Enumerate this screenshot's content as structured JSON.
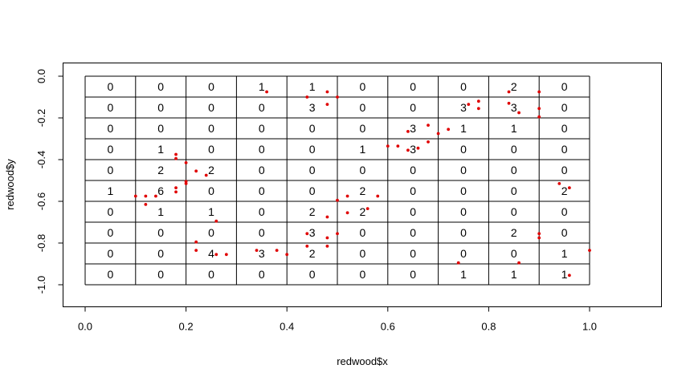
{
  "chart_data": {
    "type": "scatter",
    "xlabel": "redwood$x",
    "ylabel": "redwood$y",
    "xlim": [
      -0.05,
      1.14
    ],
    "ylim": [
      -1.1,
      0.05
    ],
    "x_ticks": [
      0.0,
      0.2,
      0.4,
      0.6,
      0.8,
      1.0
    ],
    "x_tick_labels": [
      "0.0",
      "0.2",
      "0.4",
      "0.6",
      "0.8",
      "1.0"
    ],
    "y_ticks": [
      0.0,
      -0.2,
      -0.4,
      -0.6,
      -0.8,
      -1.0
    ],
    "y_tick_labels": [
      "0.0",
      "-0.2",
      "-0.4",
      "-0.6",
      "-0.8",
      "-1.0"
    ],
    "point_color": "#e00000",
    "grid": {
      "x_breaks": [
        0.0,
        0.1,
        0.2,
        0.3,
        0.4,
        0.5,
        0.6,
        0.7,
        0.8,
        0.9,
        1.0
      ],
      "y_breaks": [
        0.0,
        -0.1,
        -0.2,
        -0.3,
        -0.4,
        -0.5,
        -0.6,
        -0.7,
        -0.8,
        -0.9,
        -1.0
      ],
      "counts": [
        [
          "0",
          "0",
          "0",
          "1",
          "1",
          "0",
          "0",
          "0",
          "2",
          "0"
        ],
        [
          "0",
          "0",
          "0",
          "0",
          "3",
          "0",
          "0",
          "3",
          "3",
          "0"
        ],
        [
          "0",
          "0",
          "0",
          "0",
          "0",
          "0",
          "3",
          "1",
          "1",
          "0"
        ],
        [
          "0",
          "1",
          "0",
          "0",
          "0",
          "1",
          "3",
          "0",
          "0",
          "0"
        ],
        [
          "0",
          "2",
          "2",
          "0",
          "0",
          "0",
          "0",
          "0",
          "0",
          "0"
        ],
        [
          "1",
          "6",
          "0",
          "0",
          "0",
          "2",
          "0",
          "0",
          "0",
          "2"
        ],
        [
          "0",
          "1",
          "1",
          "0",
          "2",
          "2",
          "0",
          "0",
          "0",
          "0"
        ],
        [
          "0",
          "0",
          "0",
          "0",
          "3",
          "0",
          "0",
          "0",
          "2",
          "0"
        ],
        [
          "0",
          "0",
          "4",
          "3",
          "2",
          "0",
          "0",
          "0",
          "0",
          "1"
        ],
        [
          "0",
          "0",
          "0",
          "0",
          "0",
          "0",
          "0",
          "1",
          "1",
          "1"
        ]
      ]
    },
    "points": [
      [
        0.36,
        -0.075
      ],
      [
        0.44,
        -0.1
      ],
      [
        0.48,
        -0.075
      ],
      [
        0.5,
        -0.1
      ],
      [
        0.84,
        -0.075
      ],
      [
        0.9,
        -0.075
      ],
      [
        0.48,
        -0.135
      ],
      [
        0.76,
        -0.135
      ],
      [
        0.78,
        -0.12
      ],
      [
        0.78,
        -0.155
      ],
      [
        0.84,
        -0.13
      ],
      [
        0.86,
        -0.175
      ],
      [
        0.9,
        -0.155
      ],
      [
        0.9,
        -0.195
      ],
      [
        0.64,
        -0.265
      ],
      [
        0.68,
        -0.235
      ],
      [
        0.7,
        -0.275
      ],
      [
        0.72,
        -0.255
      ],
      [
        0.18,
        -0.375
      ],
      [
        0.18,
        -0.395
      ],
      [
        0.6,
        -0.335
      ],
      [
        0.62,
        -0.335
      ],
      [
        0.64,
        -0.355
      ],
      [
        0.66,
        -0.345
      ],
      [
        0.68,
        -0.315
      ],
      [
        0.2,
        -0.415
      ],
      [
        0.22,
        -0.455
      ],
      [
        0.24,
        -0.475
      ],
      [
        0.1,
        -0.575
      ],
      [
        0.12,
        -0.575
      ],
      [
        0.12,
        -0.615
      ],
      [
        0.14,
        -0.575
      ],
      [
        0.18,
        -0.535
      ],
      [
        0.18,
        -0.555
      ],
      [
        0.2,
        -0.505
      ],
      [
        0.2,
        -0.515
      ],
      [
        0.52,
        -0.575
      ],
      [
        0.58,
        -0.575
      ],
      [
        0.94,
        -0.515
      ],
      [
        0.96,
        -0.535
      ],
      [
        0.26,
        -0.695
      ],
      [
        0.48,
        -0.675
      ],
      [
        0.5,
        -0.595
      ],
      [
        0.52,
        -0.655
      ],
      [
        0.56,
        -0.635
      ],
      [
        0.22,
        -0.795
      ],
      [
        0.44,
        -0.755
      ],
      [
        0.48,
        -0.775
      ],
      [
        0.5,
        -0.755
      ],
      [
        0.9,
        -0.755
      ],
      [
        0.9,
        -0.775
      ],
      [
        0.22,
        -0.835
      ],
      [
        0.26,
        -0.855
      ],
      [
        0.28,
        -0.855
      ],
      [
        0.34,
        -0.835
      ],
      [
        0.38,
        -0.835
      ],
      [
        0.4,
        -0.855
      ],
      [
        0.44,
        -0.815
      ],
      [
        0.48,
        -0.815
      ],
      [
        1.0,
        -0.835
      ],
      [
        0.74,
        -0.895
      ],
      [
        0.86,
        -0.895
      ],
      [
        0.96,
        -0.955
      ]
    ]
  }
}
